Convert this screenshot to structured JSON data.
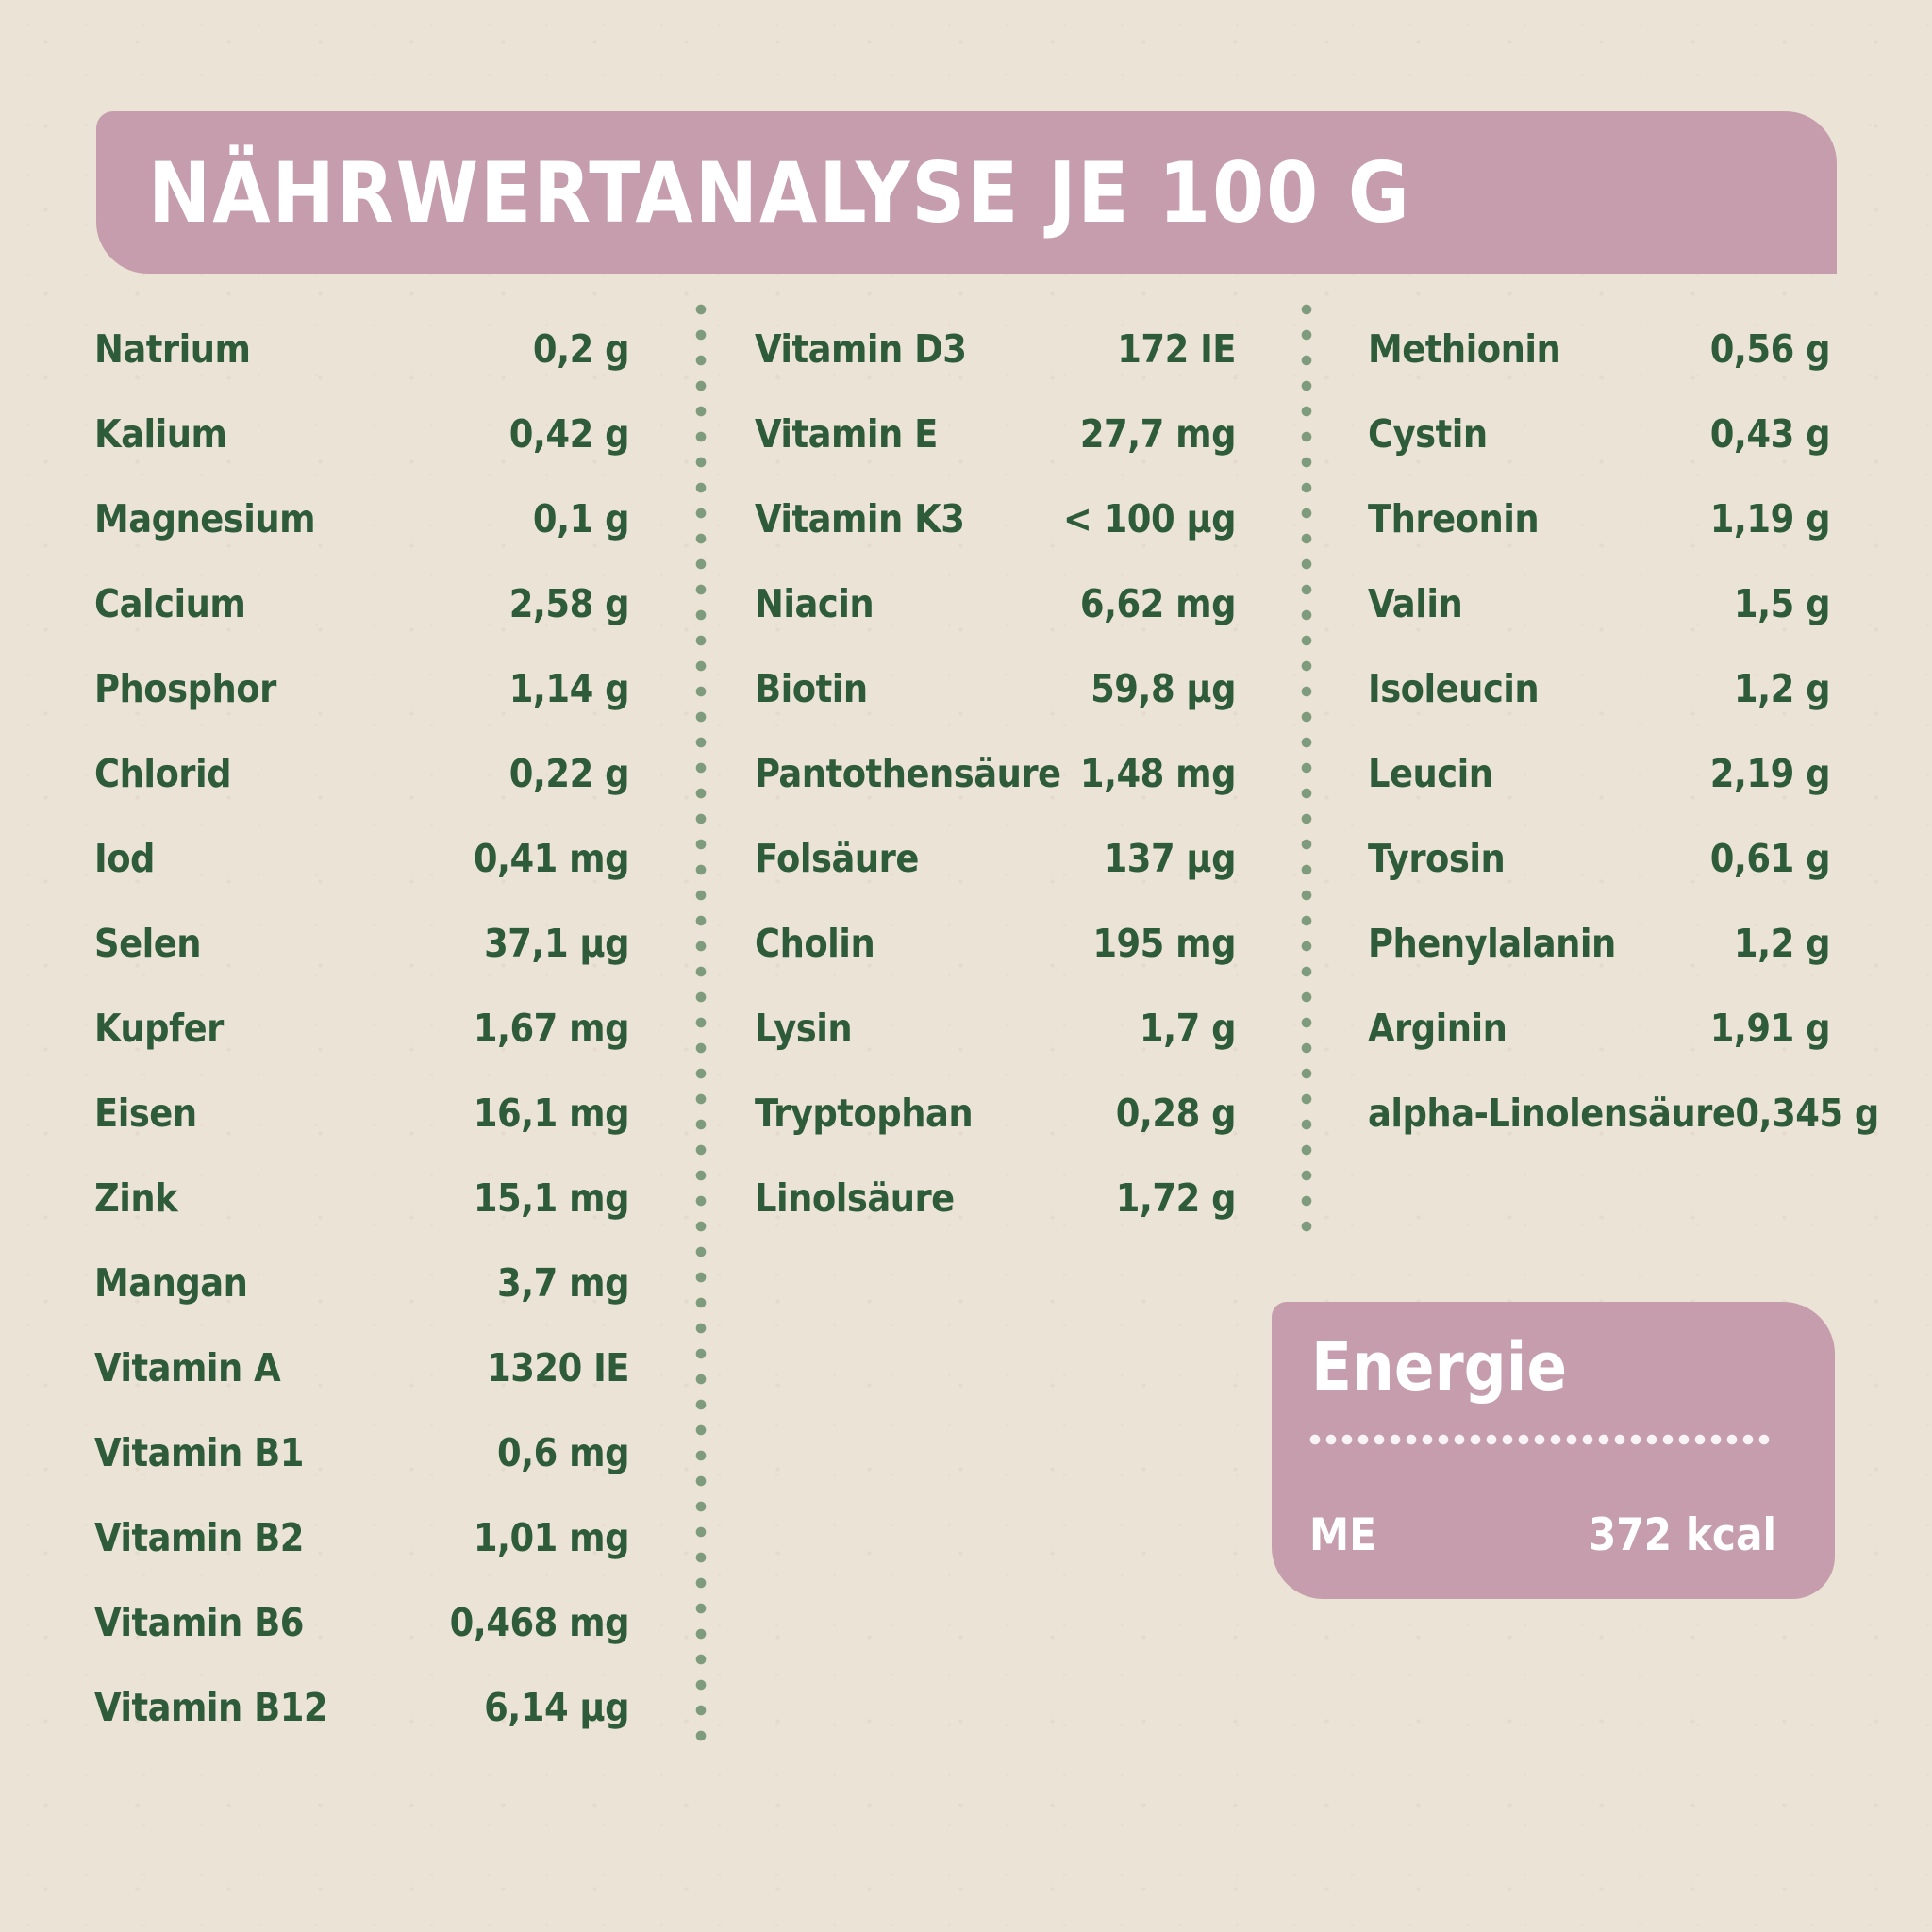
{
  "title": "NÄHRWERTANALYSE JE 100 G",
  "columns": [
    {
      "rows": [
        {
          "label": "Natrium",
          "value": "0,2 g"
        },
        {
          "label": "Kalium",
          "value": "0,42 g"
        },
        {
          "label": "Magnesium",
          "value": "0,1 g"
        },
        {
          "label": "Calcium",
          "value": "2,58 g"
        },
        {
          "label": "Phosphor",
          "value": "1,14 g"
        },
        {
          "label": "Chlorid",
          "value": "0,22 g"
        },
        {
          "label": "Iod",
          "value": "0,41 mg"
        },
        {
          "label": "Selen",
          "value": "37,1 µg"
        },
        {
          "label": "Kupfer",
          "value": "1,67 mg"
        },
        {
          "label": "Eisen",
          "value": "16,1 mg"
        },
        {
          "label": "Zink",
          "value": "15,1 mg"
        },
        {
          "label": "Mangan",
          "value": "3,7 mg"
        },
        {
          "label": "Vitamin A",
          "value": "1320 IE"
        },
        {
          "label": "Vitamin B1",
          "value": "0,6 mg"
        },
        {
          "label": "Vitamin B2",
          "value": "1,01 mg"
        },
        {
          "label": "Vitamin B6",
          "value": "0,468 mg"
        },
        {
          "label": "Vitamin B12",
          "value": "6,14 µg"
        }
      ]
    },
    {
      "rows": [
        {
          "label": "Vitamin D3",
          "value": "172 IE"
        },
        {
          "label": "Vitamin E",
          "value": "27,7 mg"
        },
        {
          "label": "Vitamin K3",
          "value": "< 100 µg"
        },
        {
          "label": "Niacin",
          "value": "6,62 mg"
        },
        {
          "label": "Biotin",
          "value": "59,8 µg"
        },
        {
          "label": "Pantothensäure",
          "value": "1,48 mg"
        },
        {
          "label": "Folsäure",
          "value": "137 µg"
        },
        {
          "label": "Cholin",
          "value": "195 mg"
        },
        {
          "label": "Lysin",
          "value": "1,7 g"
        },
        {
          "label": "Tryptophan",
          "value": "0,28 g"
        },
        {
          "label": "Linolsäure",
          "value": "1,72 g"
        }
      ]
    },
    {
      "rows": [
        {
          "label": "Methionin",
          "value": "0,56 g"
        },
        {
          "label": "Cystin",
          "value": "0,43 g"
        },
        {
          "label": "Threonin",
          "value": "1,19 g"
        },
        {
          "label": "Valin",
          "value": "1,5 g"
        },
        {
          "label": "Isoleucin",
          "value": "1,2 g"
        },
        {
          "label": "Leucin",
          "value": "2,19 g"
        },
        {
          "label": "Tyrosin",
          "value": "0,61 g"
        },
        {
          "label": "Phenylalanin",
          "value": "1,2 g"
        },
        {
          "label": "Arginin",
          "value": "1,91 g"
        },
        {
          "label": "alpha-Linolensäure",
          "value": "0,345 g"
        }
      ]
    }
  ],
  "energy": {
    "title": "Energie",
    "label": "ME",
    "value": "372 kcal"
  },
  "colors": {
    "background": "#ebe3d5",
    "accent": "#c59dac",
    "text_green": "#2e5c3a",
    "separator_dots": "#7e9b7e",
    "panel_text": "#ffffff"
  }
}
